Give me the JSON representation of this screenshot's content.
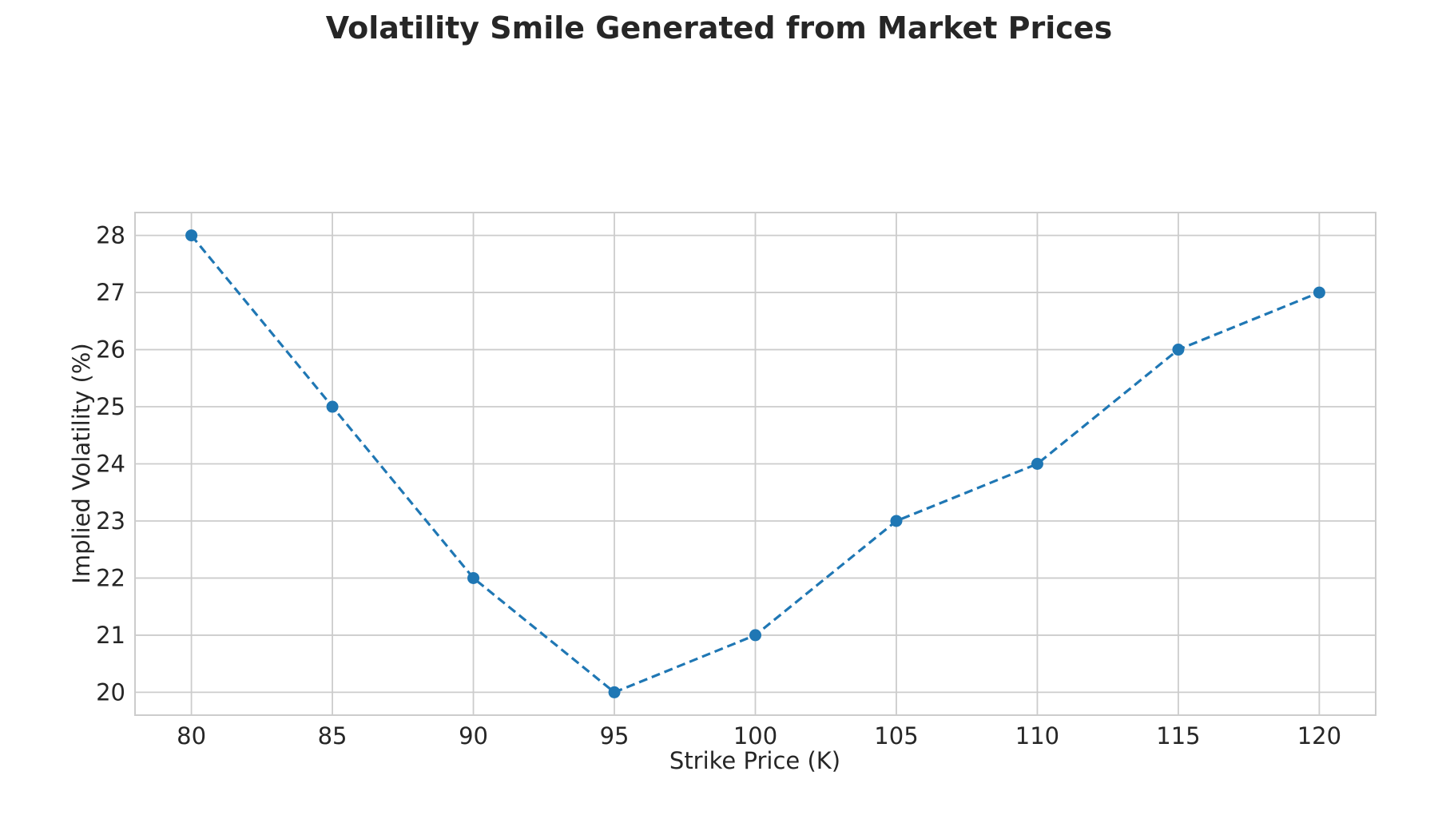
{
  "chart_data": {
    "type": "line",
    "title": "Volatility Smile Generated from Market Prices",
    "xlabel": "Strike Price (K)",
    "ylabel": "Implied Volatility (%)",
    "x": [
      80,
      85,
      90,
      95,
      100,
      105,
      110,
      115,
      120
    ],
    "series": [
      {
        "values": [
          28,
          25,
          22,
          20,
          21,
          23,
          24,
          26,
          27
        ],
        "color": "#1f77b4",
        "line_style": "dashed",
        "marker": "circle"
      }
    ],
    "xticks": [
      "80",
      "85",
      "90",
      "95",
      "100",
      "105",
      "110",
      "115",
      "120"
    ],
    "yticks": [
      "20",
      "21",
      "22",
      "23",
      "24",
      "25",
      "26",
      "27",
      "28"
    ],
    "xlim": [
      78,
      122
    ],
    "ylim": [
      19.6,
      28.4
    ],
    "grid": true,
    "legend": "none"
  }
}
